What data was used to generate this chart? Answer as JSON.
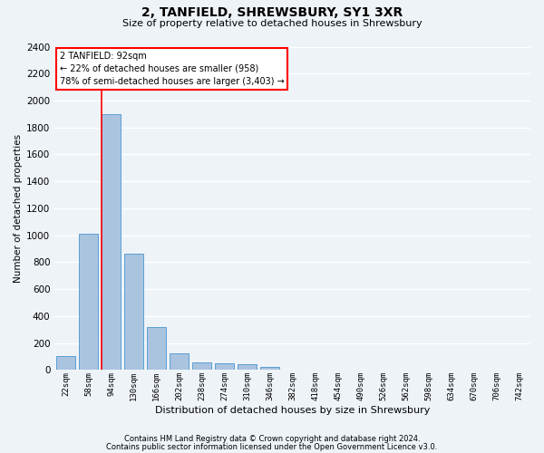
{
  "title": "2, TANFIELD, SHREWSBURY, SY1 3XR",
  "subtitle": "Size of property relative to detached houses in Shrewsbury",
  "xlabel": "Distribution of detached houses by size in Shrewsbury",
  "ylabel": "Number of detached properties",
  "footnote1": "Contains HM Land Registry data © Crown copyright and database right 2024.",
  "footnote2": "Contains public sector information licensed under the Open Government Licence v3.0.",
  "bin_labels": [
    "22sqm",
    "58sqm",
    "94sqm",
    "130sqm",
    "166sqm",
    "202sqm",
    "238sqm",
    "274sqm",
    "310sqm",
    "346sqm",
    "382sqm",
    "418sqm",
    "454sqm",
    "490sqm",
    "526sqm",
    "562sqm",
    "598sqm",
    "634sqm",
    "670sqm",
    "706sqm",
    "742sqm"
  ],
  "bar_values": [
    100,
    1010,
    1900,
    860,
    315,
    120,
    58,
    52,
    40,
    22,
    0,
    0,
    0,
    0,
    0,
    0,
    0,
    0,
    0,
    0,
    0
  ],
  "bar_color": "#aac4e0",
  "bar_edge_color": "#5a9fd4",
  "ylim_max": 2400,
  "ytick_step": 200,
  "property_bin_index": 2,
  "annotation_text_line1": "2 TANFIELD: 92sqm",
  "annotation_text_line2": "← 22% of detached houses are smaller (958)",
  "annotation_text_line3": "78% of semi-detached houses are larger (3,403) →",
  "annotation_box_facecolor": "white",
  "annotation_box_edgecolor": "red",
  "vline_color": "red",
  "bg_color": "#eef3f8",
  "grid_color": "white",
  "title_fontsize": 10,
  "subtitle_fontsize": 8,
  "ylabel_fontsize": 7.5,
  "xlabel_fontsize": 8,
  "ytick_fontsize": 7.5,
  "xtick_fontsize": 6.5,
  "annot_fontsize": 7,
  "footnote_fontsize": 6
}
